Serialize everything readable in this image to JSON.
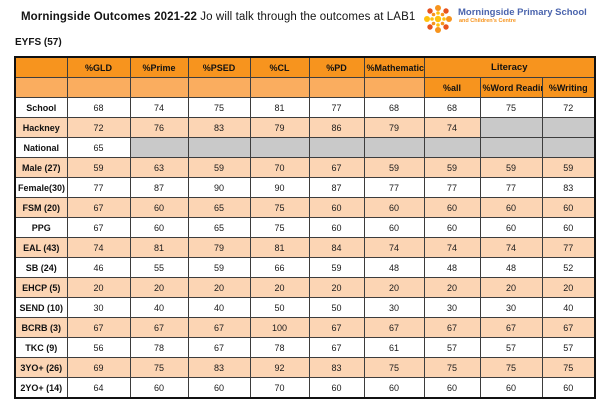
{
  "header": {
    "title_bold": "Morningside Outcomes 2021-22",
    "title_rest": " Jo will talk through the outcomes at LAB1",
    "logo": {
      "line1": "Morningside Primary School",
      "line2": "and Children's Centre",
      "icon": "starburst-sun-icon"
    }
  },
  "section_label": "EYFS (57)",
  "table": {
    "columns": [
      "%GLD",
      "%Prime",
      "%PSED",
      "%CL",
      "%PD",
      "%Mathematics"
    ],
    "literacy_group": {
      "label": "Literacy",
      "subcolumns": [
        "%all",
        "%Word Reading",
        "%Writing"
      ]
    },
    "rows": [
      {
        "label": "School",
        "shade": "w",
        "values": [
          "68",
          "74",
          "75",
          "81",
          "77",
          "68",
          "68",
          "75",
          "72"
        ]
      },
      {
        "label": "Hackney",
        "shade": "p",
        "values": [
          "72",
          "76",
          "83",
          "79",
          "86",
          "79",
          "74",
          "",
          ""
        ],
        "gray": [
          7,
          8
        ]
      },
      {
        "label": "National",
        "shade": "w",
        "values": [
          "65",
          "",
          "",
          "",
          "",
          "",
          "",
          "",
          ""
        ],
        "gray": [
          1,
          2,
          3,
          4,
          5,
          6,
          7,
          8
        ]
      },
      {
        "label": "Male (27)",
        "shade": "p",
        "values": [
          "59",
          "63",
          "59",
          "70",
          "67",
          "59",
          "59",
          "59",
          "59"
        ]
      },
      {
        "label": "Female(30)",
        "shade": "w",
        "values": [
          "77",
          "87",
          "90",
          "90",
          "87",
          "77",
          "77",
          "77",
          "83"
        ]
      },
      {
        "label": "FSM (20)",
        "shade": "p",
        "values": [
          "67",
          "60",
          "65",
          "75",
          "60",
          "60",
          "60",
          "60",
          "60"
        ]
      },
      {
        "label": "PPG",
        "shade": "w",
        "values": [
          "67",
          "60",
          "65",
          "75",
          "60",
          "60",
          "60",
          "60",
          "60"
        ]
      },
      {
        "label": "EAL (43)",
        "shade": "p",
        "values": [
          "74",
          "81",
          "79",
          "81",
          "84",
          "74",
          "74",
          "74",
          "77"
        ]
      },
      {
        "label": "SB (24)",
        "shade": "w",
        "values": [
          "46",
          "55",
          "59",
          "66",
          "59",
          "48",
          "48",
          "48",
          "52"
        ]
      },
      {
        "label": "EHCP (5)",
        "shade": "p",
        "values": [
          "20",
          "20",
          "20",
          "20",
          "20",
          "20",
          "20",
          "20",
          "20"
        ]
      },
      {
        "label": "SEND (10)",
        "shade": "w",
        "values": [
          "30",
          "40",
          "40",
          "50",
          "50",
          "30",
          "30",
          "30",
          "40"
        ]
      },
      {
        "label": "BCRB (3)",
        "shade": "p",
        "values": [
          "67",
          "67",
          "67",
          "100",
          "67",
          "67",
          "67",
          "67",
          "67"
        ]
      },
      {
        "label": "TKC (9)",
        "shade": "w",
        "values": [
          "56",
          "78",
          "67",
          "78",
          "67",
          "61",
          "57",
          "57",
          "57"
        ]
      },
      {
        "label": "3YO+ (26)",
        "shade": "p",
        "values": [
          "69",
          "75",
          "83",
          "92",
          "83",
          "75",
          "75",
          "75",
          "75"
        ]
      },
      {
        "label": "2YO+ (14)",
        "shade": "w",
        "values": [
          "64",
          "60",
          "60",
          "70",
          "60",
          "60",
          "60",
          "60",
          "60"
        ]
      }
    ]
  },
  "colors": {
    "header_orange": "#f7941e",
    "header_light": "#faad5f",
    "row_peach": "#fcd5b4",
    "cell_gray": "#c9c9c9",
    "logo_blue": "#4a64ad",
    "logo_orange": "#f7941d"
  }
}
